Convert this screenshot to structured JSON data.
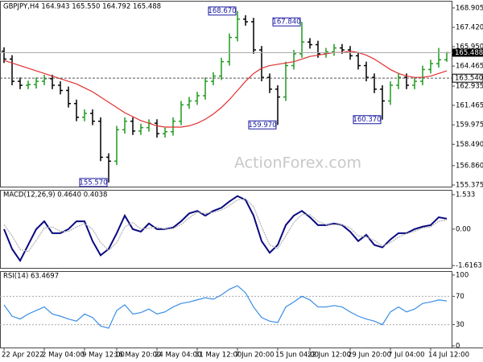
{
  "chart_data": [
    {
      "type": "ohlc",
      "title": "GBPJPY,H4 164.943 165.550 164.792 165.488",
      "watermark": "ActionForex.com",
      "categories": [
        "22 Apr 2022",
        null,
        null,
        null,
        null,
        "2 May 04:00",
        null,
        null,
        null,
        null,
        "9 May 12:00",
        null,
        null,
        null,
        "16 May 20:00",
        null,
        null,
        null,
        null,
        "24 May 04:00",
        null,
        null,
        null,
        null,
        "31 May 12:00",
        null,
        null,
        null,
        null,
        "7 Jun 20:00",
        null,
        null,
        null,
        null,
        "15 Jun 04:00",
        null,
        null,
        null,
        "22 Jun 12:00",
        null,
        null,
        null,
        null,
        "29 Jun 20:00",
        null,
        null,
        null,
        null,
        "7 Jul 04:00",
        null,
        null,
        null,
        null,
        "14 Jul 12:00",
        null,
        null
      ],
      "open": [
        165.6,
        165.0,
        163.3,
        163.0,
        163.05,
        163.3,
        163.5,
        163.0,
        162.6,
        161.6,
        160.55,
        160.85,
        160.25,
        157.5,
        157.2,
        159.6,
        160.25,
        159.5,
        159.76,
        160.1,
        159.3,
        159.45,
        160.25,
        161.5,
        161.8,
        162.2,
        163.3,
        163.7,
        164.8,
        166.65,
        168.05,
        167.85,
        165.7,
        163.6,
        162.7,
        162.1,
        164.5,
        165.4,
        166.3,
        166.1,
        165.4,
        165.55,
        165.85,
        165.7,
        165.25,
        164.5,
        163.6,
        162.7,
        161.8,
        163.0,
        163.6,
        163.0,
        163.3,
        164.2,
        164.65,
        164.943
      ],
      "high": [
        165.9,
        165.3,
        163.6,
        163.35,
        163.6,
        163.8,
        163.8,
        163.3,
        162.9,
        161.9,
        161.15,
        161.15,
        160.55,
        157.8,
        159.9,
        160.55,
        160.55,
        160.06,
        160.4,
        160.4,
        159.75,
        160.55,
        161.8,
        162.1,
        162.5,
        163.6,
        164.0,
        165.1,
        166.95,
        168.67,
        168.35,
        168.15,
        166.0,
        163.9,
        163.0,
        164.8,
        165.7,
        167.84,
        166.6,
        166.4,
        165.85,
        166.15,
        166.15,
        166.0,
        165.55,
        164.8,
        163.9,
        163.0,
        163.3,
        163.9,
        163.9,
        163.6,
        164.5,
        164.95,
        165.85,
        165.55
      ],
      "low": [
        164.7,
        163.0,
        162.7,
        162.7,
        162.75,
        163.0,
        162.7,
        162.3,
        161.3,
        160.25,
        160.25,
        159.95,
        157.2,
        155.57,
        156.9,
        159.3,
        159.2,
        159.2,
        159.46,
        159.0,
        159.0,
        159.15,
        159.95,
        161.2,
        161.5,
        161.9,
        163.0,
        163.4,
        164.5,
        166.35,
        167.55,
        165.4,
        163.3,
        162.4,
        159.97,
        161.8,
        164.2,
        165.1,
        165.8,
        165.1,
        165.1,
        165.25,
        165.4,
        164.95,
        164.2,
        163.3,
        162.4,
        160.37,
        161.5,
        162.7,
        162.7,
        162.7,
        163.0,
        163.9,
        164.35,
        164.792
      ],
      "close": [
        165.0,
        163.3,
        163.0,
        163.05,
        163.3,
        163.5,
        163.0,
        162.6,
        161.6,
        160.55,
        160.85,
        160.25,
        157.5,
        157.2,
        159.6,
        160.25,
        159.5,
        159.76,
        160.1,
        159.3,
        159.45,
        160.25,
        161.5,
        161.8,
        162.2,
        163.3,
        163.7,
        164.8,
        166.65,
        168.05,
        167.85,
        165.7,
        163.6,
        162.7,
        162.1,
        164.5,
        165.4,
        166.3,
        166.1,
        165.4,
        165.55,
        165.85,
        165.7,
        165.25,
        164.5,
        163.6,
        162.7,
        161.8,
        163.0,
        163.6,
        163.0,
        163.3,
        164.2,
        164.65,
        164.943,
        165.488
      ],
      "up_color": "#1f9a1f",
      "down_color": "#000000",
      "series": [
        {
          "color": "#e03030",
          "values": [
            164.9,
            164.7,
            164.5,
            164.3,
            164.1,
            163.9,
            163.7,
            163.5,
            163.3,
            163.1,
            162.8,
            162.5,
            162.1,
            161.7,
            161.3,
            160.9,
            160.6,
            160.3,
            160.1,
            159.9,
            159.8,
            159.8,
            159.8,
            159.9,
            160.1,
            160.4,
            160.8,
            161.3,
            161.9,
            162.6,
            163.3,
            163.9,
            164.3,
            164.5,
            164.6,
            164.7,
            164.8,
            165.0,
            165.2,
            165.3,
            165.4,
            165.5,
            165.5,
            165.6,
            165.5,
            165.3,
            165.0,
            164.6,
            164.2,
            163.9,
            163.7,
            163.6,
            163.6,
            163.7,
            163.9,
            164.1
          ]
        }
      ],
      "ylim": [
        155.253,
        169.39
      ],
      "yticks": [
        168.905,
        {
          "value": 167.42,
          "label": "167.420"
        },
        {
          "value": 165.95,
          "label": "165.950"
        },
        164.465,
        162.935,
        161.465,
        159.975,
        {
          "value": 158.49,
          "label": "158.490"
        },
        {
          "value": 156.86,
          "label": "156.860"
        },
        155.375
      ],
      "annotations": [
        {
          "value": 168.67,
          "label": "168.670"
        },
        {
          "value": 167.84,
          "label": "167.840"
        },
        {
          "value": 159.97,
          "label": "159.970"
        },
        {
          "value": 160.37,
          "label": "160.370"
        },
        {
          "value": 155.57,
          "label": "155.570"
        }
      ],
      "current_price": {
        "value": 165.488,
        "label": "165.488"
      },
      "reference_line": {
        "value": 163.54,
        "label": "163.540"
      }
    },
    {
      "type": "line",
      "title": "MACD(12,26,9) 0.4640 0.4038",
      "series": [
        {
          "color": "#0a0a80",
          "values": [
            0.0,
            -0.88,
            -1.4,
            -0.7,
            0.0,
            0.35,
            -0.18,
            -0.18,
            0.0,
            0.35,
            0.35,
            -0.53,
            -1.16,
            -0.88,
            -0.18,
            0.6,
            0.0,
            -0.11,
            0.25,
            0.0,
            0.0,
            0.07,
            0.35,
            0.7,
            0.81,
            0.6,
            0.81,
            0.95,
            1.23,
            1.47,
            1.3,
            0.6,
            -0.53,
            -1.05,
            -0.7,
            0.18,
            0.6,
            0.81,
            0.53,
            0.18,
            0.18,
            0.25,
            0.18,
            -0.11,
            -0.53,
            -0.25,
            -0.7,
            -0.81,
            -0.46,
            -0.18,
            -0.18,
            0.0,
            0.11,
            0.18,
            0.53,
            0.464
          ]
        },
        {
          "color": "#b0b0b0",
          "values": [
            0.2,
            -0.3,
            -0.9,
            -1.0,
            -0.5,
            0.05,
            0.1,
            -0.1,
            -0.1,
            0.1,
            0.25,
            0.0,
            -0.6,
            -0.95,
            -0.6,
            0.1,
            0.3,
            0.0,
            0.05,
            0.1,
            0.0,
            0.03,
            0.2,
            0.5,
            0.75,
            0.7,
            0.75,
            0.85,
            1.05,
            1.3,
            1.35,
            1.0,
            0.1,
            -0.7,
            -0.85,
            -0.3,
            0.3,
            0.65,
            0.65,
            0.35,
            0.2,
            0.2,
            0.2,
            0.05,
            -0.3,
            -0.35,
            -0.5,
            -0.75,
            -0.6,
            -0.35,
            -0.2,
            -0.1,
            0.05,
            0.1,
            0.35,
            0.4038
          ]
        }
      ],
      "ylim": [
        -1.72,
        1.71
      ],
      "yticks": [
        1.533,
        {
          "value": 0,
          "label": "0.00"
        },
        -1.6163
      ]
    },
    {
      "type": "line",
      "title": "RSI(14) 63.4697",
      "series": [
        {
          "color": "#3a8ee6",
          "values": [
            58,
            42,
            38,
            45,
            50,
            55,
            45,
            42,
            38,
            35,
            45,
            40,
            28,
            25,
            50,
            58,
            45,
            47,
            52,
            45,
            48,
            55,
            60,
            62,
            65,
            68,
            66,
            72,
            80,
            85,
            75,
            55,
            40,
            35,
            33,
            55,
            62,
            70,
            65,
            55,
            55,
            57,
            55,
            48,
            42,
            38,
            35,
            30,
            48,
            55,
            48,
            52,
            60,
            62,
            65,
            63.4697
          ]
        }
      ],
      "ylim": [
        -2.3,
        104.5
      ],
      "yticks": [
        100,
        70,
        30,
        0
      ],
      "levels": [
        70,
        30
      ]
    }
  ]
}
